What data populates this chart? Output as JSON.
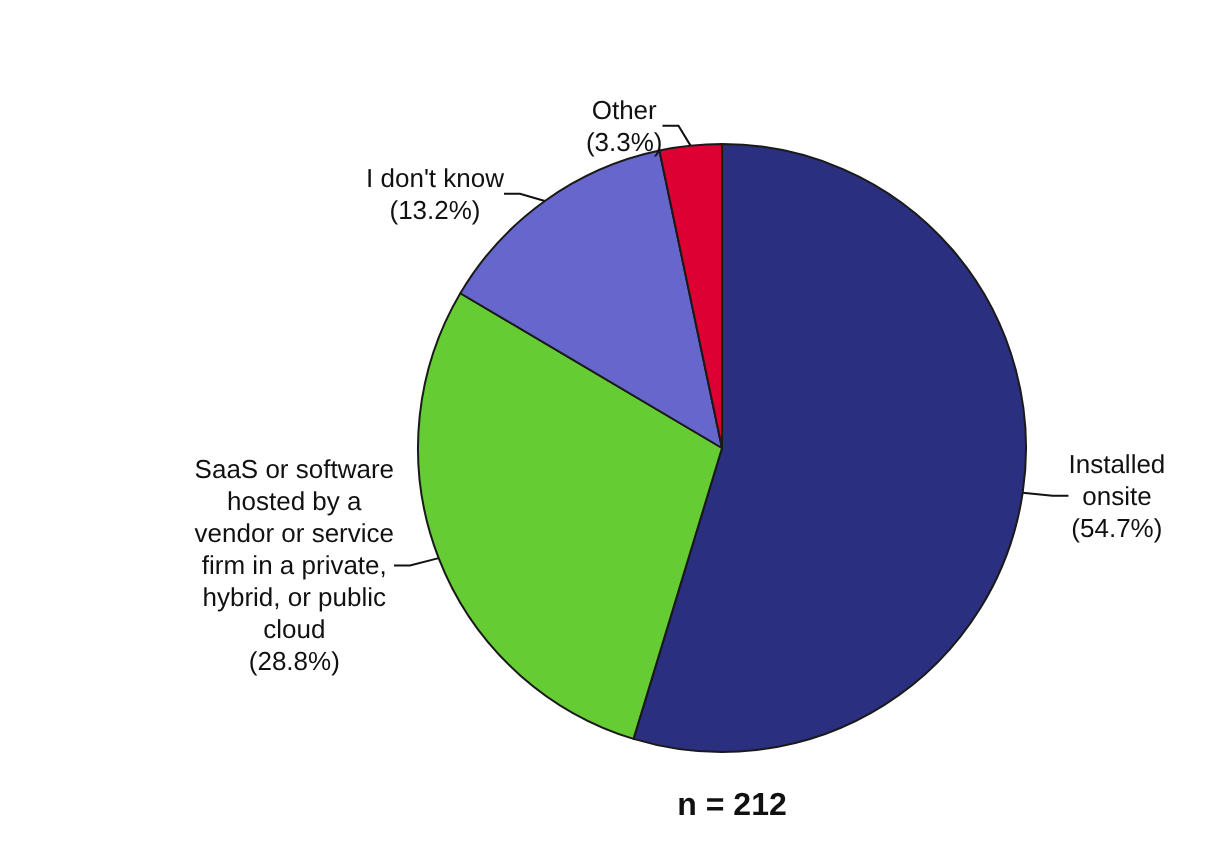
{
  "chart_data": {
    "type": "pie",
    "categories": [
      "Installed onsite",
      "SaaS or software hosted by a vendor or service firm in a private, hybrid, or public cloud",
      "I don't know",
      "Other"
    ],
    "values": [
      54.7,
      28.8,
      13.2,
      3.3
    ],
    "colors": [
      "#2b2f80",
      "#66cc33",
      "#6666cc",
      "#dd0033"
    ],
    "value_labels": [
      "(54.7%)",
      "(28.8%)",
      "(13.2%)",
      "(3.3%)"
    ],
    "annotations": [
      "n = 212"
    ]
  }
}
